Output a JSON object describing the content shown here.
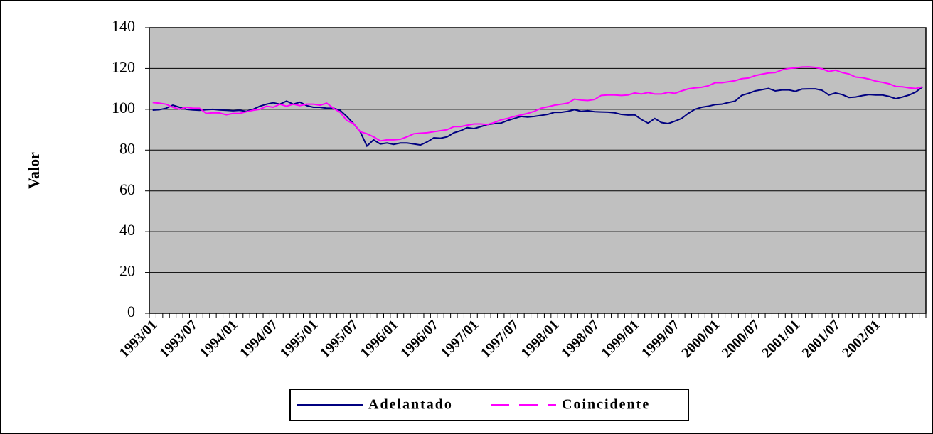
{
  "chart_data": {
    "type": "line",
    "ylabel": "Valor",
    "categories": [
      "1993/01",
      null,
      null,
      null,
      null,
      null,
      "1993/07",
      null,
      null,
      null,
      null,
      null,
      "1994/01",
      null,
      null,
      null,
      null,
      null,
      "1994/07",
      null,
      null,
      null,
      null,
      null,
      "1995/01",
      null,
      null,
      null,
      null,
      null,
      "1995/07",
      null,
      null,
      null,
      null,
      null,
      "1996/01",
      null,
      null,
      null,
      null,
      null,
      "1996/07",
      null,
      null,
      null,
      null,
      null,
      "1997/01",
      null,
      null,
      null,
      null,
      null,
      "1997/07",
      null,
      null,
      null,
      null,
      null,
      "1998/01",
      null,
      null,
      null,
      null,
      null,
      "1998/07",
      null,
      null,
      null,
      null,
      null,
      "1999/01",
      null,
      null,
      null,
      null,
      null,
      "1999/07",
      null,
      null,
      null,
      null,
      null,
      "2000/01",
      null,
      null,
      null,
      null,
      null,
      "2000/07",
      null,
      null,
      null,
      null,
      null,
      "2001/01",
      null,
      null,
      null,
      null,
      null,
      "2001/07",
      null,
      null,
      null,
      null,
      null,
      "2002/01",
      null,
      null,
      null,
      null,
      null,
      null,
      null
    ],
    "series": [
      {
        "name": "Adelantado",
        "color": "#000080",
        "dash": false,
        "values": [
          99.6,
          99.8,
          100.5,
          102,
          101,
          100,
          99.7,
          99.5,
          99.8,
          100,
          99.7,
          99.5,
          99.3,
          99.5,
          99,
          100,
          101.5,
          102.5,
          103.2,
          102.5,
          104,
          102.5,
          103.5,
          101.8,
          101,
          101,
          100.5,
          100.5,
          99.5,
          96.5,
          93,
          89,
          82,
          85,
          83,
          83.5,
          82.8,
          83.5,
          83.5,
          83,
          82.5,
          84,
          86,
          85.8,
          86.5,
          88.5,
          89.5,
          91,
          90.5,
          91.5,
          92.5,
          93,
          93.2,
          94.5,
          95.5,
          96.5,
          96.2,
          96.5,
          97,
          97.5,
          98.5,
          98.5,
          99,
          99.8,
          99,
          99.3,
          98.8,
          98.7,
          98.6,
          98.3,
          97.5,
          97.2,
          97.3,
          95,
          93.2,
          95.5,
          93.5,
          93,
          94.2,
          95.5,
          98,
          100,
          101,
          101.5,
          102.3,
          102.5,
          103.3,
          104,
          106.8,
          107.8,
          109,
          109.6,
          110.2,
          109,
          109.5,
          109.5,
          108.8,
          109.9,
          110,
          110,
          109.3,
          107,
          108,
          107.2,
          105.8,
          106,
          106.7,
          107.2,
          107,
          107,
          106.3,
          105.2,
          106,
          107,
          108.5,
          111
        ]
      },
      {
        "name": "Coincidente",
        "color": "#ff00ff",
        "dash": true,
        "values": [
          103.3,
          103,
          102.5,
          101,
          100,
          101,
          100.5,
          100.5,
          98,
          98.3,
          98.2,
          97.3,
          98,
          98,
          98.8,
          99.5,
          100,
          101.5,
          101,
          102.5,
          101.5,
          102.5,
          101.8,
          102.5,
          102.5,
          102,
          103,
          100.5,
          98.5,
          94.5,
          93,
          89,
          88,
          86.5,
          84.5,
          85,
          85,
          85.3,
          86.5,
          88,
          88.3,
          88.5,
          89,
          89.5,
          90,
          91.5,
          91.5,
          92.2,
          92.8,
          92.8,
          92.5,
          93.5,
          94.8,
          95.5,
          96.5,
          97.2,
          98,
          99,
          100.5,
          101.2,
          102,
          102.5,
          103,
          105,
          104.5,
          104.3,
          104.8,
          106.8,
          107,
          107,
          106.8,
          107,
          108,
          107.5,
          108.2,
          107.5,
          107.5,
          108.3,
          107.8,
          109,
          110,
          110.5,
          110.8,
          111.5,
          113,
          113,
          113.5,
          114,
          115,
          115.3,
          116.5,
          117.2,
          117.8,
          118,
          119.3,
          120,
          120.3,
          120.7,
          120.8,
          120.5,
          119.8,
          118.5,
          119.2,
          118,
          117.3,
          115.8,
          115.5,
          114.8,
          113.8,
          113.2,
          112.5,
          111.2,
          111,
          110.5,
          110.2,
          111
        ]
      }
    ],
    "ylim": [
      0,
      140
    ],
    "yticks": [
      0,
      20,
      40,
      60,
      80,
      100,
      120,
      140
    ],
    "grid": true,
    "legend": "bottom"
  }
}
